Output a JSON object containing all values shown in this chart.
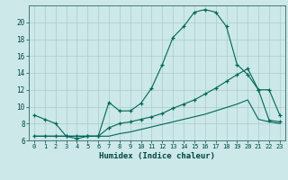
{
  "xlabel": "Humidex (Indice chaleur)",
  "bg_color": "#cce8e8",
  "grid_color": "#aacccc",
  "line_color": "#006655",
  "xlim": [
    -0.5,
    23.5
  ],
  "ylim": [
    6,
    22
  ],
  "xticks": [
    0,
    1,
    2,
    3,
    4,
    5,
    6,
    7,
    8,
    9,
    10,
    11,
    12,
    13,
    14,
    15,
    16,
    17,
    18,
    19,
    20,
    21,
    22,
    23
  ],
  "yticks": [
    6,
    8,
    10,
    12,
    14,
    16,
    18,
    20
  ],
  "curve1_x": [
    0,
    1,
    2,
    3,
    4,
    5,
    6,
    7,
    8,
    9,
    10,
    11,
    12,
    13,
    14,
    15,
    16,
    17,
    18,
    19,
    20,
    21,
    22,
    23
  ],
  "curve1_y": [
    9.0,
    8.5,
    8.0,
    6.5,
    6.2,
    6.5,
    6.5,
    10.5,
    9.5,
    9.5,
    10.4,
    12.2,
    15.0,
    18.2,
    19.5,
    21.2,
    21.5,
    21.2,
    19.5,
    15.0,
    13.8,
    12.0,
    12.0,
    9.0
  ],
  "curve2_x": [
    0,
    1,
    2,
    3,
    4,
    5,
    6,
    7,
    8,
    9,
    10,
    11,
    12,
    13,
    14,
    15,
    16,
    17,
    18,
    19,
    20,
    21,
    22,
    23
  ],
  "curve2_y": [
    6.5,
    6.5,
    6.5,
    6.5,
    6.5,
    6.5,
    6.5,
    7.5,
    8.0,
    8.2,
    8.5,
    8.8,
    9.2,
    9.8,
    10.3,
    10.8,
    11.5,
    12.2,
    13.0,
    13.8,
    14.5,
    12.0,
    8.4,
    8.2
  ],
  "curve3_x": [
    0,
    1,
    2,
    3,
    4,
    5,
    6,
    7,
    8,
    9,
    10,
    11,
    12,
    13,
    14,
    15,
    16,
    17,
    18,
    19,
    20,
    21,
    22,
    23
  ],
  "curve3_y": [
    6.5,
    6.5,
    6.5,
    6.5,
    6.5,
    6.5,
    6.5,
    6.5,
    6.8,
    7.0,
    7.3,
    7.6,
    7.9,
    8.2,
    8.5,
    8.8,
    9.1,
    9.5,
    9.9,
    10.3,
    10.8,
    8.5,
    8.2,
    8.0
  ]
}
